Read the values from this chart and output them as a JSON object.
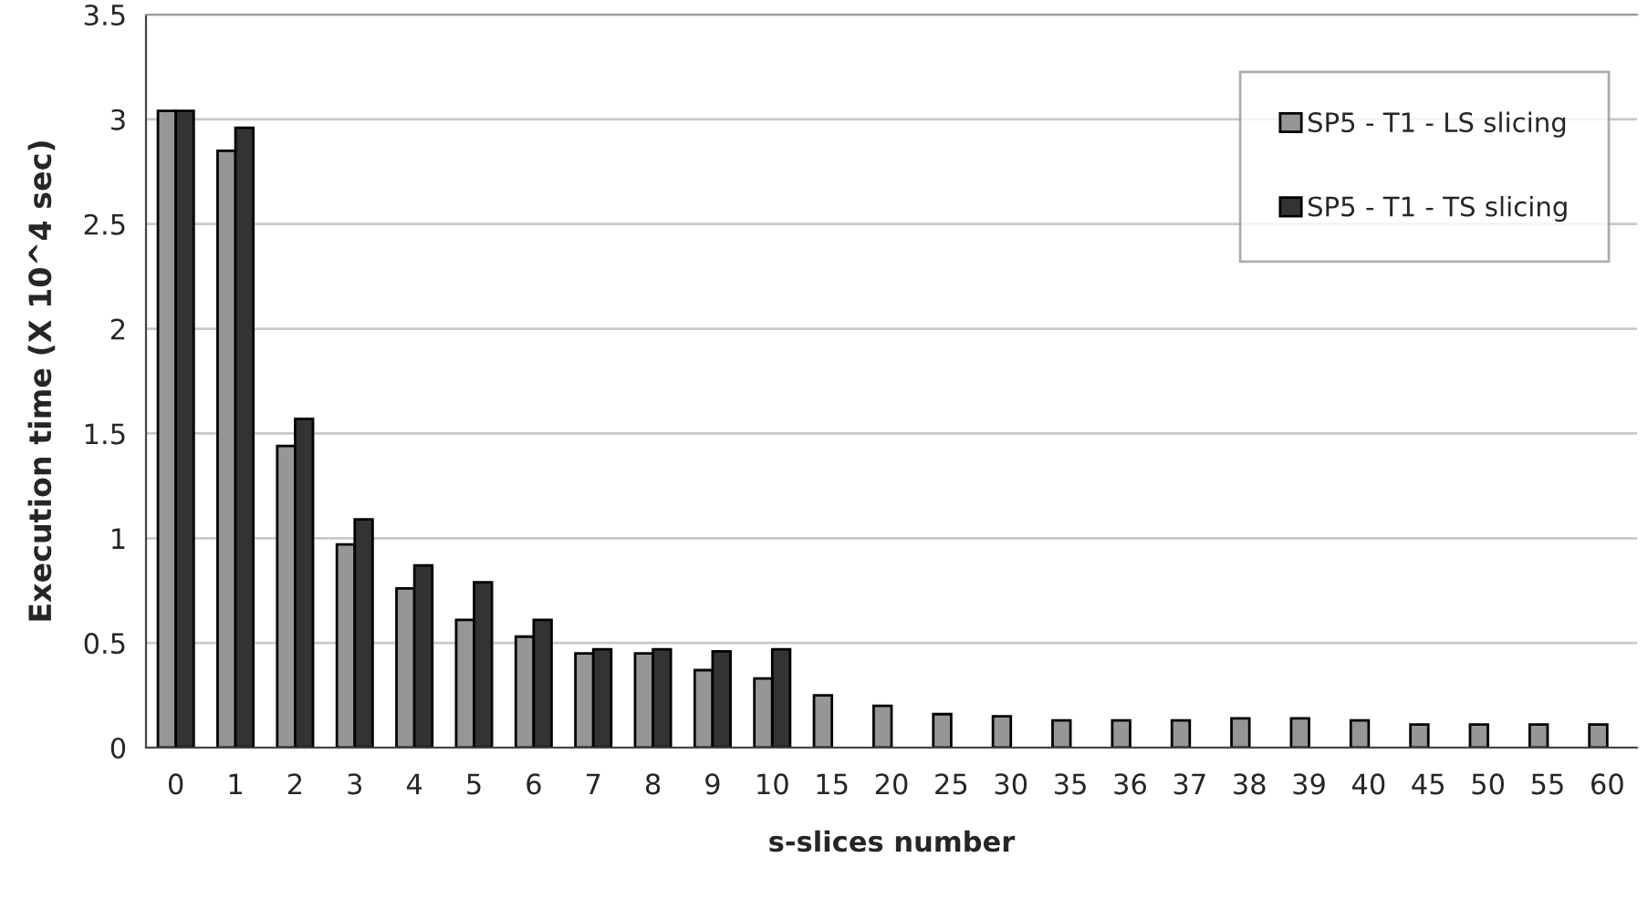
{
  "chart_data": {
    "type": "bar",
    "xlabel": "s-slices number",
    "ylabel": "Execution time (X 10^4 sec)",
    "categories": [
      "0",
      "1",
      "2",
      "3",
      "4",
      "5",
      "6",
      "7",
      "8",
      "9",
      "10",
      "15",
      "20",
      "25",
      "30",
      "35",
      "36",
      "37",
      "38",
      "39",
      "40",
      "45",
      "50",
      "55",
      "60"
    ],
    "series": [
      {
        "name": "SP5 - T1 - LS slicing",
        "color": "#969696",
        "values": [
          3.04,
          2.85,
          1.44,
          0.97,
          0.76,
          0.61,
          0.53,
          0.45,
          0.45,
          0.37,
          0.33,
          0.25,
          0.2,
          0.16,
          0.15,
          0.13,
          0.13,
          0.13,
          0.14,
          0.14,
          0.13,
          0.11,
          0.11,
          0.11,
          0.11
        ]
      },
      {
        "name": "SP5 - T1 - TS slicing",
        "color": "#333333",
        "values": [
          3.04,
          2.96,
          1.57,
          1.09,
          0.87,
          0.79,
          0.61,
          0.47,
          0.47,
          0.46,
          0.47,
          null,
          null,
          null,
          null,
          null,
          null,
          null,
          null,
          null,
          null,
          null,
          null,
          null,
          null
        ]
      }
    ],
    "ylim": [
      0,
      3.5
    ],
    "yticks": [
      {
        "value": 0,
        "label": "0"
      },
      0.5,
      {
        "value": 1,
        "label": "1"
      },
      1.5,
      {
        "value": 2,
        "label": "2"
      },
      2.5,
      {
        "value": 3,
        "label": "3"
      },
      3.5
    ],
    "grid": "y",
    "legend": "top right"
  }
}
